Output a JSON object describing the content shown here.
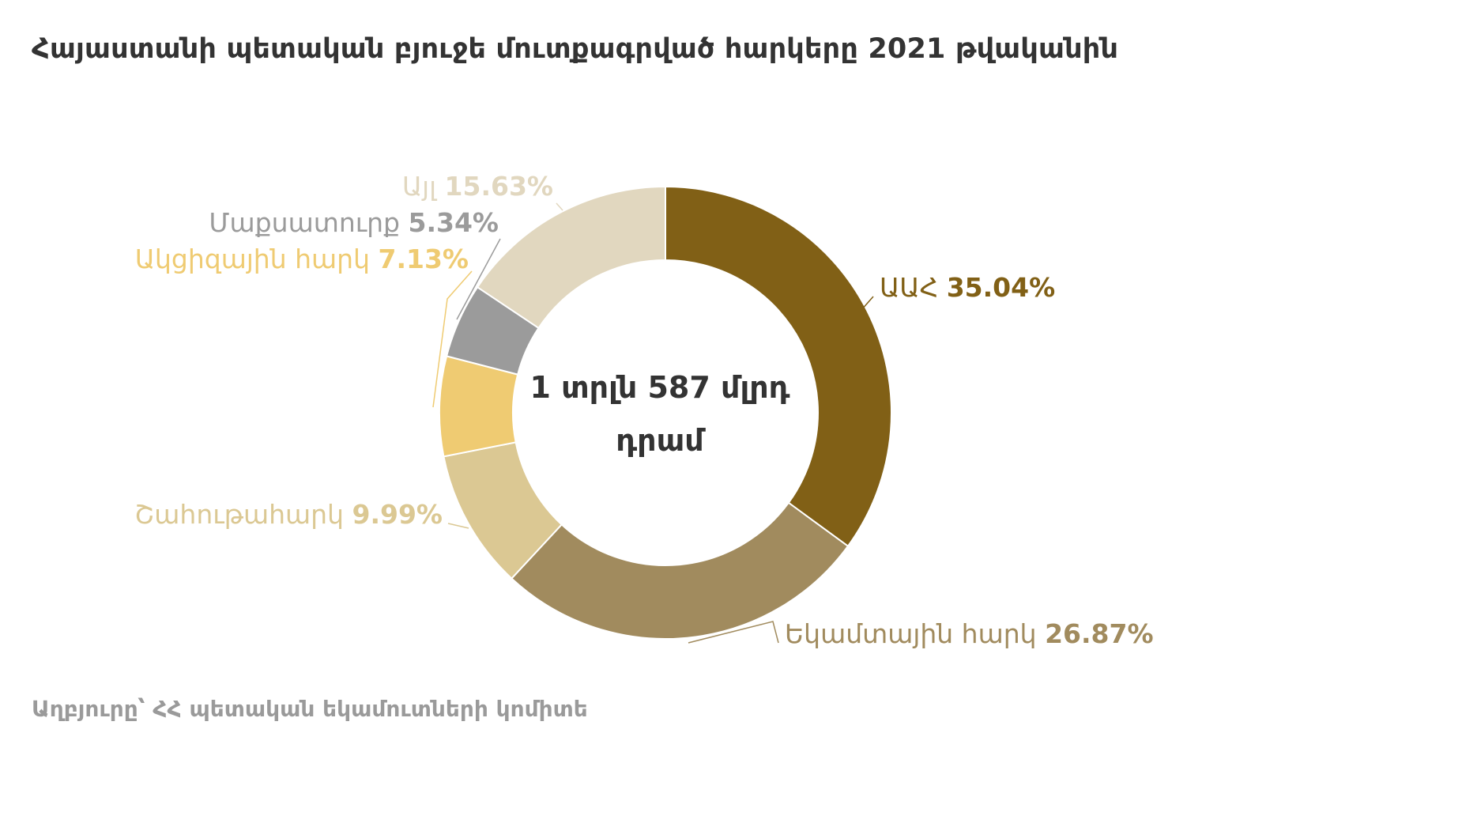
{
  "chart_data": {
    "type": "pie",
    "style": "donut",
    "title": "Հայաստանի պետական բյուջե մուտքագրված հարկերը  2021 թվականին",
    "center_label": [
      "1 տրլն 587 մլրդ",
      "դրամ"
    ],
    "source": "Աղբյուրը՝ ՀՀ պետական եկամուտների կոմիտե",
    "slices": [
      {
        "name": "ԱԱՀ",
        "value": 35.04,
        "value_label": "35.04%",
        "color": "#816016"
      },
      {
        "name": "Եկամտային հարկ",
        "value": 26.87,
        "value_label": "26.87%",
        "color": "#a18b5e"
      },
      {
        "name": "Շահութահարկ",
        "value": 9.99,
        "value_label": "9.99%",
        "color": "#dbc893"
      },
      {
        "name": "Ակցիզային հարկ",
        "value": 7.13,
        "value_label": "7.13%",
        "color": "#efcb72"
      },
      {
        "name": "Մաքսատուրք",
        "value": 5.34,
        "value_label": "5.34%",
        "color": "#9b9b9b"
      },
      {
        "name": "Այլ",
        "value": 15.63,
        "value_label": "15.63%",
        "color": "#e1d7bf"
      }
    ]
  }
}
